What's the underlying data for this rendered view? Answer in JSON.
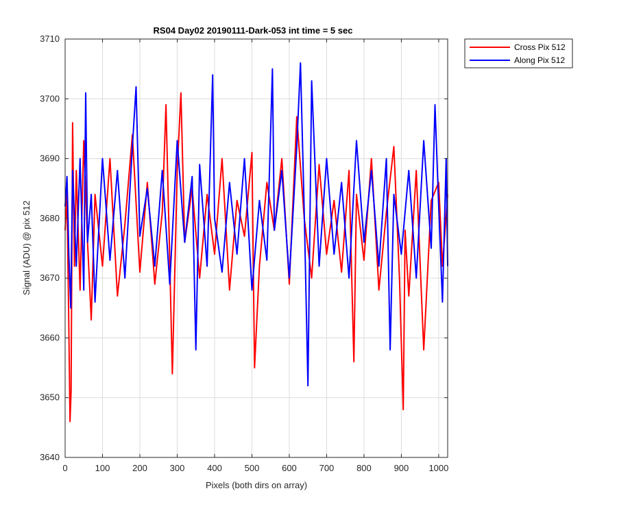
{
  "chart_data": {
    "type": "line",
    "title": "RS04 Day02 20190111-Dark-053 int time = 5 sec",
    "xlabel": "Pixels (both dirs on array)",
    "ylabel": "Signal (ADU) @ pix 512",
    "xlim": [
      0,
      1024
    ],
    "ylim": [
      3640,
      3710
    ],
    "xticks": [
      0,
      100,
      200,
      300,
      400,
      500,
      600,
      700,
      800,
      900,
      1000
    ],
    "yticks": [
      3640,
      3650,
      3660,
      3670,
      3680,
      3690,
      3700,
      3710
    ],
    "grid": true,
    "legend_position": "outside-top-right",
    "series": [
      {
        "name": "Cross Pix 512",
        "color": "#ff0000",
        "x": [
          0,
          5,
          10,
          13,
          16,
          20,
          25,
          30,
          40,
          50,
          60,
          70,
          80,
          100,
          120,
          140,
          160,
          180,
          200,
          220,
          240,
          260,
          270,
          280,
          287,
          300,
          310,
          320,
          340,
          360,
          380,
          400,
          420,
          440,
          460,
          480,
          500,
          507,
          520,
          540,
          560,
          580,
          600,
          620,
          640,
          660,
          680,
          700,
          720,
          740,
          760,
          773,
          780,
          800,
          820,
          840,
          860,
          880,
          895,
          905,
          910,
          920,
          940,
          960,
          980,
          1000,
          1010,
          1024
        ],
        "values": [
          3678,
          3684,
          3662,
          3646,
          3651,
          3696,
          3672,
          3688,
          3668,
          3693,
          3676,
          3663,
          3684,
          3672,
          3690,
          3667,
          3679,
          3694,
          3671,
          3686,
          3669,
          3681,
          3699,
          3673,
          3654,
          3688,
          3701,
          3676,
          3685,
          3670,
          3684,
          3674,
          3690,
          3668,
          3683,
          3677,
          3691,
          3655,
          3672,
          3686,
          3678,
          3690,
          3669,
          3697,
          3680,
          3670,
          3689,
          3674,
          3683,
          3671,
          3688,
          3656,
          3684,
          3673,
          3690,
          3668,
          3681,
          3692,
          3670,
          3648,
          3678,
          3667,
          3688,
          3658,
          3683,
          3686,
          3672,
          3684
        ]
      },
      {
        "name": "Along Pix 512",
        "color": "#0000ff",
        "x": [
          0,
          5,
          10,
          15,
          20,
          30,
          40,
          50,
          55,
          60,
          70,
          80,
          100,
          120,
          140,
          160,
          180,
          190,
          200,
          220,
          240,
          260,
          280,
          300,
          320,
          340,
          350,
          360,
          380,
          395,
          400,
          420,
          440,
          460,
          480,
          500,
          520,
          540,
          555,
          560,
          580,
          600,
          620,
          630,
          640,
          650,
          660,
          680,
          700,
          720,
          740,
          760,
          780,
          800,
          820,
          840,
          860,
          870,
          880,
          900,
          920,
          940,
          960,
          980,
          990,
          1000,
          1010,
          1020,
          1024
        ],
        "values": [
          3682,
          3687,
          3674,
          3665,
          3688,
          3672,
          3690,
          3668,
          3701,
          3676,
          3684,
          3666,
          3690,
          3673,
          3688,
          3670,
          3692,
          3702,
          3677,
          3685,
          3672,
          3688,
          3669,
          3693,
          3676,
          3687,
          3658,
          3689,
          3672,
          3704,
          3680,
          3671,
          3686,
          3674,
          3690,
          3668,
          3683,
          3673,
          3705,
          3678,
          3688,
          3670,
          3692,
          3706,
          3681,
          3652,
          3703,
          3672,
          3690,
          3674,
          3686,
          3670,
          3693,
          3676,
          3688,
          3672,
          3690,
          3658,
          3684,
          3674,
          3688,
          3670,
          3693,
          3675,
          3699,
          3682,
          3666,
          3690,
          3672
        ]
      }
    ]
  }
}
